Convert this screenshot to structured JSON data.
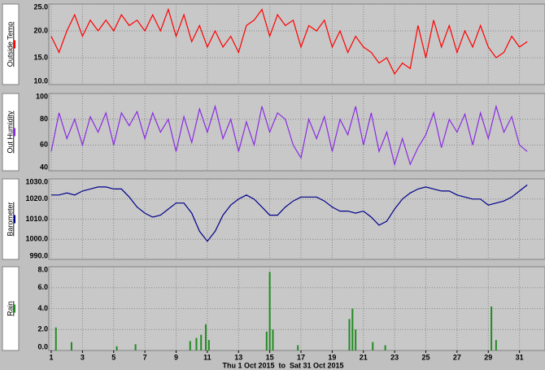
{
  "chart_data": [
    {
      "type": "line",
      "xlim": [
        1,
        31.8
      ],
      "x": [
        1,
        1.5,
        2,
        2.5,
        3,
        3.5,
        4,
        4.5,
        5,
        5.5,
        6,
        6.5,
        7,
        7.5,
        8,
        8.5,
        9,
        9.5,
        10,
        10.5,
        11,
        11.5,
        12,
        12.5,
        13,
        13.5,
        14,
        14.5,
        15,
        15.5,
        16,
        16.5,
        17,
        17.5,
        18,
        18.5,
        19,
        19.5,
        20,
        20.5,
        21,
        21.5,
        22,
        22.5,
        23,
        23.5,
        24,
        24.5,
        25,
        25.5,
        26,
        26.5,
        27,
        27.5,
        28,
        28.5,
        29,
        29.5,
        30,
        30.5,
        31,
        31.5
      ],
      "series": [
        {
          "name": "Outside Temp",
          "color": "#ff0000",
          "values": [
            19,
            16,
            20,
            23,
            19,
            22,
            20,
            22,
            20,
            23,
            21,
            22,
            20,
            23,
            20,
            24,
            19,
            23,
            18,
            21,
            17,
            20,
            17,
            19,
            16,
            21,
            22,
            24,
            19,
            23,
            21,
            22,
            17,
            21,
            20,
            22,
            17,
            20,
            16,
            19,
            17,
            16,
            14,
            15,
            12,
            14,
            13,
            21,
            15,
            22,
            17,
            21,
            16,
            20,
            17,
            21,
            17,
            15,
            16,
            19,
            17,
            18
          ]
        }
      ],
      "ylim": [
        10,
        25
      ],
      "yticks": [
        {
          "value": 10,
          "label": "10.0"
        },
        {
          "value": 15,
          "label": "15.0"
        },
        {
          "value": 20,
          "label": "20.0"
        },
        {
          "value": 25,
          "label": "25.0"
        }
      ],
      "grid": true
    },
    {
      "type": "line",
      "xlim": [
        1,
        31.8
      ],
      "x": [
        1,
        1.5,
        2,
        2.5,
        3,
        3.5,
        4,
        4.5,
        5,
        5.5,
        6,
        6.5,
        7,
        7.5,
        8,
        8.5,
        9,
        9.5,
        10,
        10.5,
        11,
        11.5,
        12,
        12.5,
        13,
        13.5,
        14,
        14.5,
        15,
        15.5,
        16,
        16.5,
        17,
        17.5,
        18,
        18.5,
        19,
        19.5,
        20,
        20.5,
        21,
        21.5,
        22,
        22.5,
        23,
        23.5,
        24,
        24.5,
        25,
        25.5,
        26,
        26.5,
        27,
        27.5,
        28,
        28.5,
        29,
        29.5,
        30,
        30.5,
        31,
        31.5
      ],
      "series": [
        {
          "name": "Out Humidity",
          "color": "#8a2be2",
          "values": [
            55,
            85,
            65,
            80,
            60,
            82,
            70,
            85,
            60,
            85,
            75,
            86,
            65,
            85,
            70,
            80,
            55,
            82,
            62,
            88,
            70,
            90,
            65,
            80,
            55,
            78,
            60,
            90,
            70,
            85,
            80,
            60,
            50,
            80,
            65,
            82,
            55,
            80,
            68,
            90,
            60,
            85,
            55,
            70,
            45,
            65,
            45,
            58,
            68,
            85,
            58,
            80,
            70,
            84,
            60,
            85,
            65,
            90,
            70,
            82,
            60,
            55
          ]
        }
      ],
      "ylim": [
        40,
        100
      ],
      "yticks": [
        40,
        60,
        80,
        100
      ],
      "grid": true
    },
    {
      "type": "line",
      "xlim": [
        1,
        31.8
      ],
      "x": [
        1,
        1.5,
        2,
        2.5,
        3,
        3.5,
        4,
        4.5,
        5,
        5.5,
        6,
        6.5,
        7,
        7.5,
        8,
        8.5,
        9,
        9.5,
        10,
        10.5,
        11,
        11.5,
        12,
        12.5,
        13,
        13.5,
        14,
        14.5,
        15,
        15.5,
        16,
        16.5,
        17,
        17.5,
        18,
        18.5,
        19,
        19.5,
        20,
        20.5,
        21,
        21.5,
        22,
        22.5,
        23,
        23.5,
        24,
        24.5,
        25,
        25.5,
        26,
        26.5,
        27,
        27.5,
        28,
        28.5,
        29,
        29.5,
        30,
        30.5,
        31,
        31.5
      ],
      "series": [
        {
          "name": "Barometer",
          "color": "#00008b",
          "values": [
            1022,
            1022,
            1023,
            1022,
            1024,
            1025,
            1026,
            1026,
            1025,
            1025,
            1021,
            1016,
            1013,
            1011,
            1012,
            1015,
            1018,
            1018,
            1013,
            1004,
            999,
            1004,
            1012,
            1017,
            1020,
            1022,
            1020,
            1016,
            1012,
            1012,
            1016,
            1019,
            1021,
            1021,
            1021,
            1019,
            1016,
            1014,
            1014,
            1013,
            1014,
            1011,
            1007,
            1009,
            1015,
            1020,
            1023,
            1025,
            1026,
            1025,
            1024,
            1024,
            1022,
            1021,
            1020,
            1020,
            1017,
            1018,
            1019,
            1021,
            1024,
            1027
          ]
        }
      ],
      "ylim": [
        990,
        1030
      ],
      "yticks": [
        {
          "value": 990,
          "label": "990.0"
        },
        {
          "value": 1000,
          "label": "1000.0"
        },
        {
          "value": 1010,
          "label": "1010.0"
        },
        {
          "value": 1020,
          "label": "1020.0"
        },
        {
          "value": 1030,
          "label": "1030.0"
        }
      ],
      "grid": true
    },
    {
      "type": "bar",
      "xlim": [
        1,
        31.8
      ],
      "x": [
        1.3,
        2.3,
        5.2,
        6.4,
        9.9,
        10.3,
        10.6,
        10.9,
        11.1,
        14.8,
        15.0,
        15.2,
        16.8,
        20.1,
        20.3,
        20.5,
        21.6,
        22.4,
        29.2,
        29.5
      ],
      "series": [
        {
          "name": "Rain",
          "color": "#228b22",
          "values": [
            2.2,
            0.8,
            0.4,
            0.6,
            0.9,
            1.2,
            1.5,
            2.5,
            1.0,
            1.8,
            7.5,
            2.0,
            0.5,
            3.0,
            4.0,
            2.0,
            0.8,
            0.5,
            4.2,
            1.0
          ]
        }
      ],
      "ylim": [
        0,
        8
      ],
      "yticks": [
        {
          "value": 0,
          "label": "0.0"
        },
        {
          "value": 2,
          "label": "2.0"
        },
        {
          "value": 4,
          "label": "4.0"
        },
        {
          "value": 6,
          "label": "6.0"
        },
        {
          "value": 8,
          "label": "8.0"
        }
      ],
      "grid": true,
      "xticks": [
        1,
        3,
        5,
        7,
        9,
        11,
        13,
        15,
        17,
        19,
        21,
        23,
        25,
        27,
        29,
        31
      ],
      "xlabel": "Thu 1 Oct 2015  to  Sat 31 Oct 2015"
    }
  ]
}
